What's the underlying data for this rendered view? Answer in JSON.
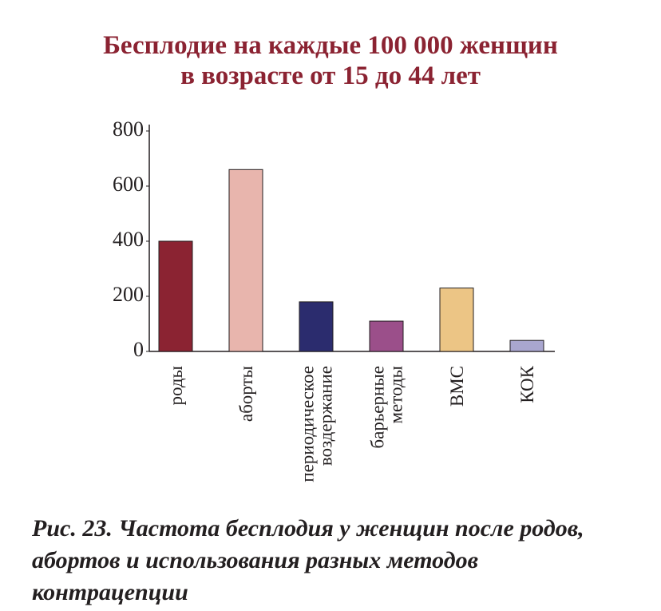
{
  "chart_data": {
    "type": "bar",
    "title": "Бесплодие на каждые 100 000 женщин\nв возрасте от 15 до 44 лет",
    "categories": [
      "роды",
      "аборты",
      "периодическое\nвоздержание",
      "барьерные\nметоды",
      "ВМС",
      "КОК"
    ],
    "values": [
      400,
      660,
      180,
      110,
      230,
      40
    ],
    "colors": [
      "#8b2332",
      "#e8b5ad",
      "#2b2c6e",
      "#9b4f8a",
      "#ecc585",
      "#a9a6cf"
    ],
    "ylim": [
      0,
      800
    ],
    "yticks": [
      0,
      200,
      400,
      600,
      800
    ],
    "grid": false
  },
  "caption": "Рис. 23. Частота бесплодия у женщин после родов,\nабортов и использования разных методов\nконтрацепции"
}
